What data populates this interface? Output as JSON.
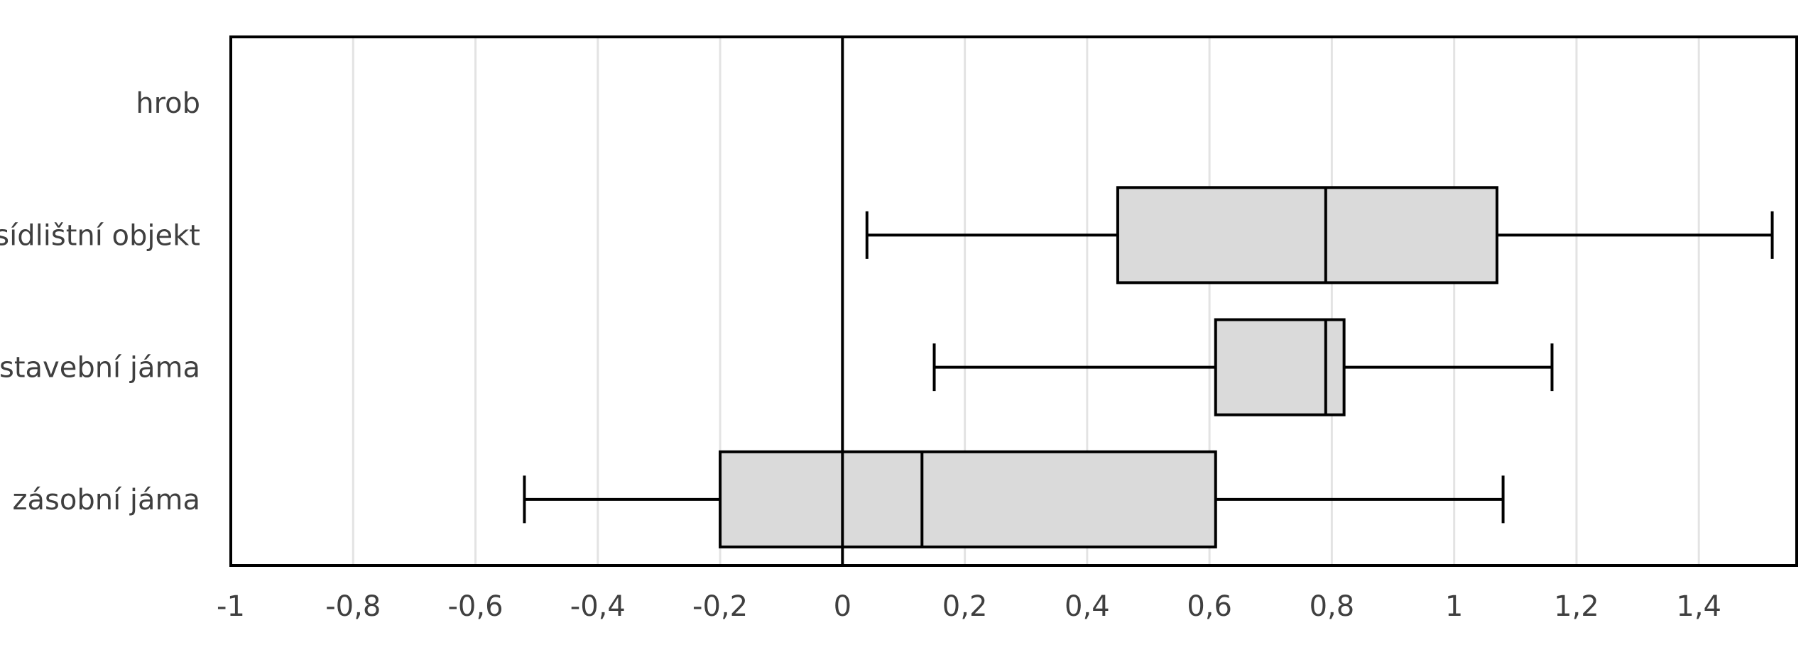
{
  "chart_data": {
    "type": "boxplot",
    "orientation": "horizontal",
    "title": "",
    "xlabel": "",
    "ylabel": "",
    "xlim": [
      -1,
      1.56
    ],
    "x_ticks": [
      -1,
      -0.8,
      -0.6,
      -0.4,
      -0.2,
      0,
      0.2,
      0.4,
      0.6,
      0.8,
      1,
      1.2,
      1.4
    ],
    "x_tick_labels": [
      "-1",
      "-0,8",
      "-0,6",
      "-0,4",
      "-0,2",
      "0",
      "0,2",
      "0,4",
      "0,6",
      "0,8",
      "1",
      "1,2",
      "1,4"
    ],
    "grid": "vertical",
    "colors": {
      "box_fill": "#dadada",
      "stroke": "#000000",
      "grid": "#e3e3e3",
      "text": "#3f3f3f"
    },
    "categories": [
      "hrob",
      "sídlištní objekt",
      "stavební jáma",
      "zásobní jáma"
    ],
    "boxes": [
      {
        "category": "hrob",
        "min": -1,
        "q1": -1,
        "median": -1,
        "q3": -1,
        "max": -1
      },
      {
        "category": "sídlištní objekt",
        "min": 0.04,
        "q1": 0.45,
        "median": 0.79,
        "q3": 1.07,
        "max": 1.52
      },
      {
        "category": "stavební jáma",
        "min": 0.15,
        "q1": 0.61,
        "median": 0.79,
        "q3": 0.82,
        "max": 1.16
      },
      {
        "category": "zásobní jáma",
        "min": -0.52,
        "q1": -0.2,
        "median": 0.13,
        "q3": 0.61,
        "max": 1.08
      }
    ]
  }
}
